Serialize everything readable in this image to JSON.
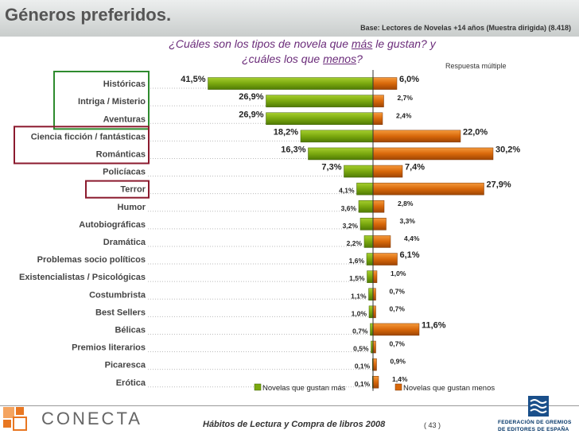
{
  "header": {
    "title": "Géneros preferidos.",
    "base": "Base: Lectores de Novelas +14 años (Muestra dirigida) (8.418)"
  },
  "question": {
    "line1_a": "¿Cuáles son los tipos de novela que ",
    "line1_em": "más",
    "line1_b": " le gustan? y",
    "line2_a": "¿cuáles los que ",
    "line2_em": "menos",
    "line2_b": "?"
  },
  "note": "Respuesta múltiple",
  "colors": {
    "green": "#7aa80f",
    "orange": "#d8680a",
    "green_box": "#2e8b2e",
    "red_box": "#8b1a2e"
  },
  "chart_data": {
    "type": "bar",
    "orientation": "horizontal-diverging",
    "categories": [
      "Históricas",
      "Intriga / Misterio",
      "Aventuras",
      "Ciencia ficción / fantásticas",
      "Románticas",
      "Policíacas",
      "Terror",
      "Humor",
      "Autobiográficas",
      "Dramática",
      "Problemas socio políticos",
      "Existencialistas / Psicológicas",
      "Costumbrista",
      "Best Sellers",
      "Bélicas",
      "Premios literarios",
      "Picaresca",
      "Erótica"
    ],
    "series": [
      {
        "name": "Novelas que gustan más",
        "color": "#7aa80f",
        "values": [
          41.5,
          26.9,
          26.9,
          18.2,
          16.3,
          7.3,
          4.1,
          3.6,
          3.2,
          2.2,
          1.6,
          1.5,
          1.1,
          1.0,
          0.7,
          0.5,
          0.1,
          0.1
        ],
        "labels": [
          "41,5%",
          "26,9%",
          "26,9%",
          "18,2%",
          "16,3%",
          "7,3%",
          "4,1%",
          "3,6%",
          "3,2%",
          "2,2%",
          "1,6%",
          "1,5%",
          "1,1%",
          "1,0%",
          "0,7%",
          "0,5%",
          "0,1%",
          "0,1%"
        ]
      },
      {
        "name": "Novelas que gustan menos",
        "color": "#d8680a",
        "values": [
          6.0,
          2.7,
          2.4,
          22.0,
          30.2,
          7.4,
          27.9,
          2.8,
          3.3,
          4.4,
          6.1,
          1.0,
          0.7,
          0.7,
          11.6,
          0.7,
          0.9,
          1.4
        ],
        "labels": [
          "6,0%",
          "2,7%",
          "2,4%",
          "22,0%",
          "30,2%",
          "7,4%",
          "27,9%",
          "2,8%",
          "3,3%",
          "4,4%",
          "6,1%",
          "1,0%",
          "0,7%",
          "0,7%",
          "11,6%",
          "0,7%",
          "0,9%",
          "1,4%"
        ]
      }
    ],
    "large_label_threshold": 5,
    "highlight_green_categories": [
      "Históricas",
      "Intriga / Misterio",
      "Aventuras"
    ],
    "highlight_red_categories": [
      "Ciencia ficción / fantásticas",
      "Románticas",
      "Terror"
    ]
  },
  "footer": {
    "brand": "CONECTA",
    "title": "Hábitos de Lectura y Compra de libros 2008",
    "page": "( 43 )",
    "federation_line1": "FEDERACIÓN DE GREMIOS",
    "federation_line2": "DE EDITORES DE ESPAÑA"
  }
}
